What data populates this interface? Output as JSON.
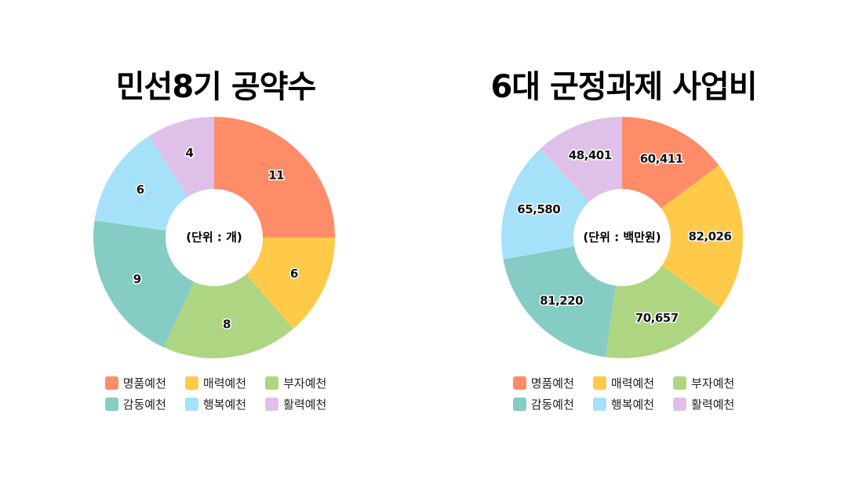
{
  "colors": [
    "#FF8C69",
    "#FFCA4A",
    "#AED581",
    "#84CCC4",
    "#A6E1FA",
    "#DFC0E8"
  ],
  "chart_data": [
    {
      "type": "pie",
      "title": "민선8기 공약수",
      "center_label": "(단위 : 개)",
      "categories": [
        "명품예천",
        "매력예천",
        "부자예천",
        "감동예천",
        "행복예천",
        "활력예천"
      ],
      "values": [
        11,
        6,
        8,
        9,
        6,
        4
      ],
      "value_labels": [
        "11",
        "6",
        "8",
        "9",
        "6",
        "4"
      ],
      "legend": "bottom"
    },
    {
      "type": "pie",
      "title": "6대 군정과제 사업비",
      "center_label": "(단위 : 백만원)",
      "categories": [
        "명품예천",
        "매력예천",
        "부자예천",
        "감동예천",
        "행복예천",
        "활력예천"
      ],
      "values": [
        60411,
        82026,
        70657,
        81220,
        65580,
        48401
      ],
      "value_labels": [
        "60,411",
        "82,026",
        "70,657",
        "81,220",
        "65,580",
        "48,401"
      ],
      "legend": "bottom"
    }
  ]
}
